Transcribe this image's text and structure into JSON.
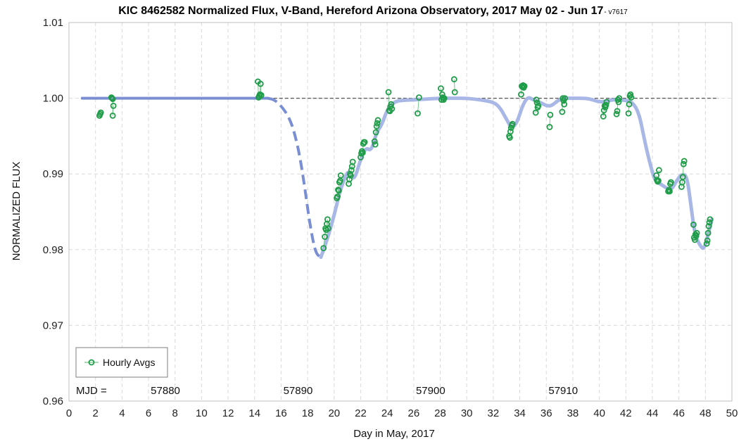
{
  "chart_data": {
    "type": "scatter",
    "title": "KIC 8462582 Normalized Flux, V-Band, Hereford Arizona Observatory, 2017 May 02 - Jun 17",
    "title_suffix": "- v7617",
    "xlabel": "Day in May, 2017",
    "ylabel": "NORMALIZED FLUX",
    "xlim": [
      0,
      50
    ],
    "ylim": [
      0.96,
      1.01
    ],
    "xticks": [
      0,
      2,
      4,
      6,
      8,
      10,
      12,
      14,
      16,
      18,
      20,
      22,
      24,
      26,
      28,
      30,
      32,
      34,
      36,
      38,
      40,
      42,
      44,
      46,
      48,
      50
    ],
    "yticks": [
      0.96,
      0.97,
      0.98,
      0.99,
      1.0,
      1.01
    ],
    "ytick_labels": [
      "0.96",
      "0.97",
      "0.98",
      "0.99",
      "1.00",
      "1.01"
    ],
    "grid": true,
    "legend": {
      "position": "bottom-left",
      "entries": [
        "Hourly Avgs"
      ]
    },
    "mjd_label": "MJD =",
    "mjd_markers": [
      {
        "day": 6,
        "label": "57880"
      },
      {
        "day": 16,
        "label": "57890"
      },
      {
        "day": 26,
        "label": "57900"
      },
      {
        "day": 36,
        "label": "57910"
      }
    ],
    "reference_line": {
      "y": 1.0,
      "style": "dashed",
      "color": "#555555"
    },
    "colors": {
      "points": "#1e9c48",
      "trend": "#a9b7e6",
      "trend_dashed": "#7a8fd3",
      "points_link": "#7bc48f"
    },
    "series": [
      {
        "name": "Hourly Avgs",
        "x": [
          2.3,
          2.35,
          2.4,
          3.2,
          3.25,
          3.3,
          3.3,
          3.35,
          14.25,
          14.3,
          14.35,
          14.4,
          14.45,
          14.5,
          19.2,
          19.3,
          19.35,
          19.4,
          19.45,
          19.5,
          19.55,
          20.2,
          20.25,
          20.3,
          20.35,
          20.4,
          20.45,
          20.5,
          21.1,
          21.15,
          21.2,
          21.25,
          21.3,
          21.35,
          21.4,
          22.0,
          22.05,
          22.1,
          22.15,
          22.2,
          22.25,
          22.3,
          23.05,
          23.1,
          23.15,
          23.2,
          23.25,
          23.3,
          24.1,
          24.15,
          24.2,
          24.25,
          24.3,
          24.35,
          26.3,
          26.4,
          28.05,
          28.1,
          28.15,
          28.2,
          28.25,
          28.3,
          29.05,
          29.1,
          33.2,
          33.25,
          33.3,
          33.35,
          33.4,
          33.45,
          34.1,
          34.15,
          34.2,
          34.25,
          34.3,
          34.35,
          35.2,
          35.25,
          35.3,
          35.35,
          35.4,
          36.25,
          36.3,
          37.2,
          37.25,
          37.3,
          37.35,
          37.4,
          40.3,
          40.35,
          40.4,
          40.45,
          40.5,
          40.55,
          41.3,
          41.35,
          41.4,
          41.45,
          41.5,
          42.2,
          42.25,
          42.3,
          42.35,
          42.4,
          44.3,
          44.35,
          44.4,
          44.45,
          44.5,
          45.2,
          45.25,
          45.3,
          45.35,
          45.4,
          46.2,
          46.25,
          46.3,
          46.35,
          46.4,
          47.1,
          47.15,
          47.2,
          47.25,
          47.3,
          47.35,
          48.1,
          48.15,
          48.2,
          48.25,
          48.3,
          48.35
        ],
        "y": [
          0.9977,
          0.9979,
          0.9981,
          1.0001,
          1.0,
          0.9999,
          0.9977,
          0.999,
          1.0022,
          1.0001,
          1.0003,
          1.0005,
          1.0019,
          1.0004,
          0.9802,
          0.9817,
          0.9828,
          0.9826,
          0.9834,
          0.984,
          0.9828,
          0.9868,
          0.987,
          0.9879,
          0.9878,
          0.9889,
          0.9891,
          0.9898,
          0.9887,
          0.9893,
          0.99,
          0.9898,
          0.9905,
          0.991,
          0.9916,
          0.9922,
          0.9927,
          0.993,
          0.9928,
          0.994,
          0.9942,
          0.9942,
          0.9943,
          0.9939,
          0.9955,
          0.9963,
          0.9967,
          0.9971,
          1.0008,
          0.9984,
          0.9983,
          0.9989,
          0.9992,
          0.9986,
          0.998,
          1.0001,
          1.0013,
          0.9998,
          1.0005,
          1.0001,
          0.9998,
          1.0,
          1.0025,
          1.0008,
          0.995,
          0.9948,
          0.9956,
          0.9961,
          0.9964,
          0.9966,
          1.0005,
          1.0016,
          1.0015,
          1.0017,
          1.0014,
          1.0016,
          0.9981,
          0.9998,
          0.9994,
          0.9988,
          0.999,
          0.9962,
          0.9978,
          0.9982,
          1.0,
          0.9997,
          0.9992,
          1.0,
          0.9976,
          0.9984,
          0.999,
          0.9988,
          0.9991,
          0.9995,
          0.9979,
          0.9983,
          0.9998,
          0.9995,
          1.0,
          0.998,
          0.9992,
          1.0003,
          1.0005,
          1.0001,
          0.9898,
          0.9892,
          0.989,
          0.9891,
          0.9905,
          0.9877,
          0.9879,
          0.9877,
          0.9887,
          0.9889,
          0.9883,
          0.9889,
          0.9896,
          0.9913,
          0.9917,
          0.9833,
          0.9816,
          0.9813,
          0.982,
          0.9818,
          0.9822,
          0.9808,
          0.9812,
          0.9822,
          0.9831,
          0.9836,
          0.984
        ]
      },
      {
        "role": "trend",
        "x": [
          1,
          3,
          5,
          8,
          11,
          14,
          15,
          15.5,
          16,
          16.6,
          17,
          17.4,
          17.8,
          18.2,
          18.6,
          19.0,
          19.5,
          20.0,
          20.4,
          20.8,
          21.1,
          21.5,
          22,
          22.4,
          22.8,
          23.2,
          23.6,
          24,
          24.5,
          25,
          26,
          27,
          28,
          29,
          30,
          31,
          32,
          32.5,
          33,
          33.4,
          33.8,
          34.2,
          34.6,
          35,
          35.5,
          36,
          36.4,
          36.8,
          37.2,
          38,
          39,
          39.5,
          40,
          40.5,
          41,
          41.5,
          42,
          42.5,
          43,
          43.4,
          43.8,
          44.2,
          44.6,
          45,
          45.4,
          45.8,
          46.2,
          46.6,
          46.9,
          47.2,
          47.6,
          47.9,
          48.2,
          48.5
        ],
        "y": [
          1.0,
          1.0,
          1.0,
          1.0,
          1.0,
          1.0,
          1.0,
          0.9998,
          0.999,
          0.9975,
          0.9955,
          0.9925,
          0.988,
          0.983,
          0.9795,
          0.979,
          0.9815,
          0.9845,
          0.9875,
          0.9895,
          0.9905,
          0.989,
          0.992,
          0.9935,
          0.993,
          0.9955,
          0.9965,
          0.9985,
          0.9995,
          0.9997,
          0.9998,
          0.9999,
          1.0,
          1.0,
          1.0,
          0.9998,
          0.9995,
          0.9988,
          0.9972,
          0.996,
          0.9968,
          0.999,
          1.0002,
          0.9998,
          0.9995,
          0.999,
          0.999,
          0.9996,
          1.0,
          1.0,
          1.0,
          0.9998,
          0.9995,
          0.9996,
          0.9998,
          0.9998,
          0.9997,
          0.9995,
          0.998,
          0.9945,
          0.9915,
          0.989,
          0.9887,
          0.9882,
          0.9878,
          0.989,
          0.99,
          0.9898,
          0.986,
          0.982,
          0.9805,
          0.98,
          0.982,
          0.984
        ],
        "dashed_range": [
          15,
          18.8
        ]
      }
    ]
  }
}
